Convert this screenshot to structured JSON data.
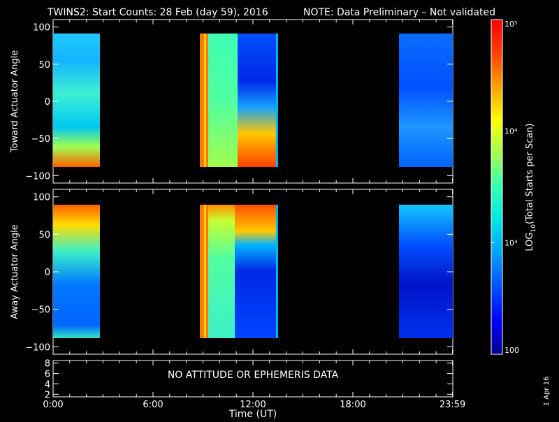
{
  "title": {
    "main": "TWINS2: Start Counts: 28 Feb (day  59), 2016",
    "note": "NOTE: Data Preliminary – Not validated",
    "note_color": "#ff2020"
  },
  "no_data_message": "NO ATTITUDE OR EPHEMERIS DATA",
  "date_stamp": "1 Apr 16",
  "colorbar": {
    "label_prefix": "LOG",
    "label_sub": "10",
    "label_suffix": "(Total Starts per Scan)",
    "ticks": [
      {
        "value": 100,
        "label": "100"
      },
      {
        "value": 1000,
        "label": "10³"
      },
      {
        "value": 10000,
        "label": "10⁴"
      },
      {
        "value": 100000,
        "label": "10⁵"
      }
    ],
    "range": [
      100,
      100000
    ],
    "colors": [
      "#00008c",
      "#0000ff",
      "#0050ff",
      "#00a0ff",
      "#00e6e6",
      "#32ffb4",
      "#a0ff50",
      "#ffff00",
      "#ffa000",
      "#ff4000",
      "#ff0000"
    ]
  },
  "chart_data": [
    {
      "type": "heatmap",
      "ylabel": "Toward Actuator Angle",
      "ylim": [
        -110,
        110
      ],
      "yticks": [
        100,
        50,
        0,
        -50,
        -100
      ],
      "xlim": [
        0,
        24
      ],
      "data_blocks": [
        {
          "start_hour": 0.0,
          "end_hour": 2.5,
          "ymin": -88,
          "ymax": 88
        },
        {
          "start_hour": 8.6,
          "end_hour": 12.9,
          "ymin": -88,
          "ymax": 88
        },
        {
          "start_hour": 20.6,
          "end_hour": 24.0,
          "ymin": -88,
          "ymax": 88
        }
      ]
    },
    {
      "type": "heatmap",
      "ylabel": "Away Actuator Angle",
      "ylim": [
        -110,
        110
      ],
      "yticks": [
        100,
        50,
        0,
        -50,
        -100
      ],
      "xlim": [
        0,
        24
      ],
      "data_blocks": [
        {
          "start_hour": 0.0,
          "end_hour": 2.5,
          "ymin": -88,
          "ymax": 88
        },
        {
          "start_hour": 8.6,
          "end_hour": 12.9,
          "ymin": -88,
          "ymax": 88
        },
        {
          "start_hour": 20.6,
          "end_hour": 24.0,
          "ymin": -88,
          "ymax": 88
        }
      ]
    },
    {
      "type": "line",
      "ylim": [
        1.5,
        8.5
      ],
      "yticks": [
        8,
        6,
        4,
        2
      ],
      "xlim": [
        0,
        24
      ],
      "xlabel": "Time (UT)",
      "xticks": [
        {
          "hour": 0,
          "label": "0:00"
        },
        {
          "hour": 6,
          "label": "6:00"
        },
        {
          "hour": 12,
          "label": "12:00"
        },
        {
          "hour": 18,
          "label": "18:00"
        },
        {
          "hour": 23.983,
          "label": "23:59"
        }
      ]
    }
  ]
}
